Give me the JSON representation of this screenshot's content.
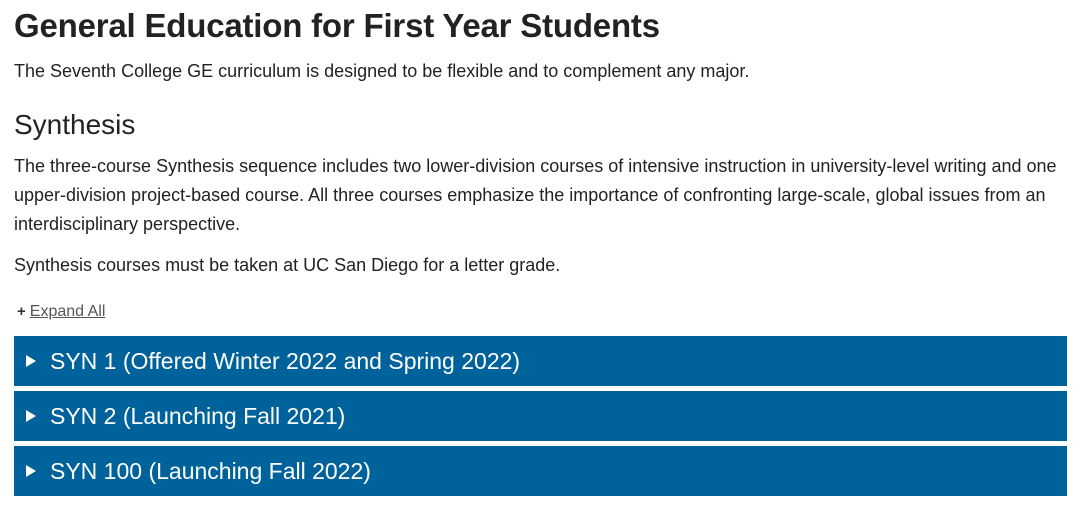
{
  "page": {
    "title": "General Education for First Year Students",
    "intro": "The Seventh College GE curriculum is designed to be flexible and to complement any major."
  },
  "section": {
    "title": "Synthesis",
    "body": "The three-course Synthesis sequence includes two lower-division courses of intensive instruction in university-level writing and one upper-division project-based course. All three courses emphasize the importance of confronting large-scale, global issues from an interdisciplinary perspective.",
    "note": "Synthesis courses must be taken at UC San Diego for a letter grade."
  },
  "expand_all": {
    "icon": "plus-icon",
    "symbol": "+",
    "label": "Expand All"
  },
  "accordion": {
    "items": [
      {
        "label": "SYN 1 (Offered Winter 2022 and Spring 2022)",
        "icon": "triangle-right-icon"
      },
      {
        "label": "SYN 2 (Launching Fall 2021)",
        "icon": "triangle-right-icon"
      },
      {
        "label": "SYN 100 (Launching Fall 2022)",
        "icon": "triangle-right-icon"
      }
    ]
  },
  "colors": {
    "accordion_bg": "#00629b",
    "text": "#222222"
  }
}
